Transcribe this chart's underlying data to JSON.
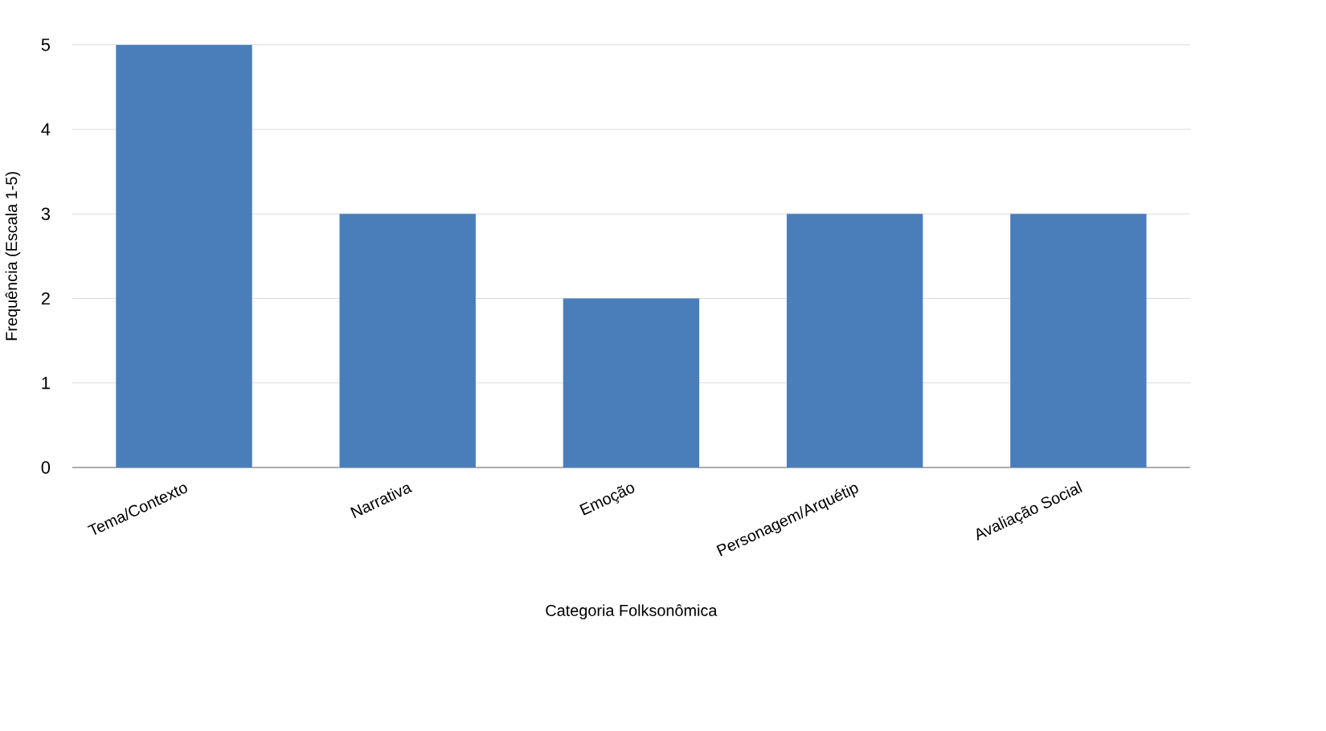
{
  "chart_data": {
    "type": "bar",
    "categories": [
      "Tema/Contexto",
      "Narrativa",
      "Emoção",
      "Personagem/Arquétip",
      "Avaliação Social"
    ],
    "values": [
      5,
      3,
      2,
      3,
      3
    ],
    "color": "#4a7ebb",
    "xlabel": "Categoria Folksonômica",
    "ylabel": "Frequência (Escala 1-5)",
    "ylim": [
      0,
      5
    ],
    "yticks": [
      0,
      1,
      2,
      3,
      4,
      5
    ],
    "grid": "y"
  }
}
